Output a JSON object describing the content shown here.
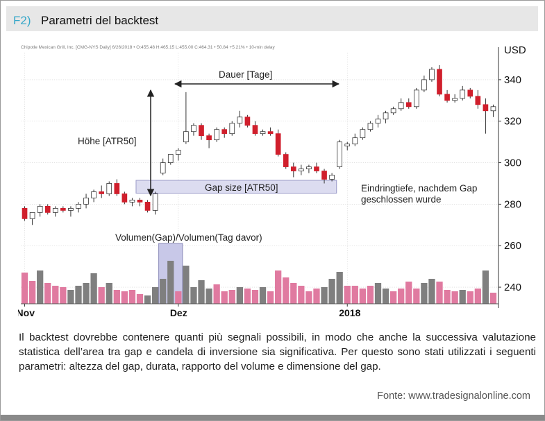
{
  "figure": {
    "label": "F2)",
    "title": "Parametri del backtest",
    "caption": "Il backtest dovrebbe contenere quanti più segnali possibili, in modo che anche la successiva valutazione statistica dell’area tra gap e candela di inversione sia significativa. Per questo sono stati utilizzati i seguenti parametri: altezza del gap, durata, rapporto del volume e dimensione del gap.",
    "source": "Fonte: www.tradesignalonline.com"
  },
  "colors": {
    "up_candle": "#ffffff",
    "down_candle": "#d01f2c",
    "volume_up": "#7f7f7f",
    "volume_down": "#e07aa0",
    "gap_box": "#dcdcf0",
    "volume_box": "#c8c8e8",
    "accent": "#36a7c9"
  },
  "chart_data": {
    "type": "candlestick",
    "header": "Chipotle Mexican Grill, Inc. [CMG-NYS Daily] 6/26/2018 • O:455.48 H:465.15 L:455.00 C:464.31 • 50.84 +5.21% • 10-min delay",
    "ylabel": "USD",
    "ylim": [
      232,
      353
    ],
    "yticks": [
      240,
      260,
      280,
      300,
      320,
      340
    ],
    "x_labels": [
      {
        "label": "Nov",
        "index": 0
      },
      {
        "label": "Dez",
        "index": 20
      },
      {
        "label": "2018",
        "index": 42
      }
    ],
    "candles": [
      [
        278,
        279,
        272,
        273
      ],
      [
        273,
        276,
        270,
        276
      ],
      [
        276,
        280,
        274,
        279
      ],
      [
        279,
        280,
        275,
        276
      ],
      [
        276,
        279,
        274,
        278
      ],
      [
        278,
        279,
        276,
        277
      ],
      [
        277,
        279,
        274,
        278
      ],
      [
        278,
        281,
        276,
        280
      ],
      [
        280,
        285,
        278,
        283
      ],
      [
        283,
        287,
        281,
        286
      ],
      [
        286,
        289,
        283,
        285
      ],
      [
        285,
        291,
        284,
        290
      ],
      [
        290,
        292,
        284,
        285
      ],
      [
        285,
        286,
        280,
        281
      ],
      [
        281,
        283,
        279,
        282
      ],
      [
        282,
        283,
        279,
        281
      ],
      [
        281,
        282,
        276,
        277
      ],
      [
        277,
        286,
        275,
        285
      ],
      [
        295,
        302,
        294,
        300
      ],
      [
        300,
        304,
        299,
        304
      ],
      [
        304,
        307,
        301,
        306
      ],
      [
        310,
        334,
        309,
        315
      ],
      [
        315,
        319,
        313,
        318
      ],
      [
        318,
        319,
        311,
        313
      ],
      [
        313,
        314,
        307,
        311
      ],
      [
        311,
        317,
        310,
        316
      ],
      [
        316,
        317,
        312,
        314
      ],
      [
        314,
        320,
        313,
        319
      ],
      [
        319,
        325,
        317,
        322
      ],
      [
        322,
        323,
        317,
        318
      ],
      [
        318,
        320,
        313,
        314
      ],
      [
        314,
        316,
        313,
        315
      ],
      [
        315,
        317,
        313,
        314
      ],
      [
        314,
        316,
        303,
        304
      ],
      [
        304,
        305,
        297,
        298
      ],
      [
        298,
        300,
        293,
        296
      ],
      [
        296,
        299,
        294,
        297
      ],
      [
        297,
        299,
        295,
        298
      ],
      [
        298,
        300,
        295,
        296
      ],
      [
        296,
        297,
        290,
        292
      ],
      [
        292,
        295,
        291,
        294
      ],
      [
        298,
        311,
        297,
        310
      ],
      [
        308,
        310,
        306,
        309
      ],
      [
        309,
        314,
        308,
        312
      ],
      [
        312,
        317,
        311,
        316
      ],
      [
        316,
        320,
        315,
        319
      ],
      [
        319,
        323,
        317,
        321
      ],
      [
        321,
        325,
        319,
        324
      ],
      [
        324,
        327,
        323,
        326
      ],
      [
        326,
        331,
        325,
        329
      ],
      [
        329,
        331,
        326,
        327
      ],
      [
        327,
        336,
        326,
        335
      ],
      [
        335,
        342,
        334,
        340
      ],
      [
        340,
        346,
        339,
        345
      ],
      [
        345,
        347,
        332,
        333
      ],
      [
        333,
        335,
        329,
        330
      ],
      [
        330,
        333,
        329,
        331
      ],
      [
        331,
        337,
        330,
        335
      ],
      [
        335,
        336,
        331,
        332
      ],
      [
        332,
        335,
        326,
        328
      ],
      [
        328,
        331,
        314,
        325
      ],
      [
        325,
        328,
        322,
        327
      ]
    ],
    "volume": [
      [
        45,
        "down"
      ],
      [
        33,
        "down"
      ],
      [
        48,
        "up"
      ],
      [
        30,
        "down"
      ],
      [
        26,
        "down"
      ],
      [
        24,
        "down"
      ],
      [
        20,
        "up"
      ],
      [
        26,
        "up"
      ],
      [
        30,
        "up"
      ],
      [
        44,
        "up"
      ],
      [
        24,
        "down"
      ],
      [
        30,
        "up"
      ],
      [
        20,
        "down"
      ],
      [
        18,
        "down"
      ],
      [
        20,
        "down"
      ],
      [
        14,
        "down"
      ],
      [
        12,
        "up"
      ],
      [
        24,
        "up"
      ],
      [
        36,
        "up"
      ],
      [
        62,
        "up"
      ],
      [
        18,
        "down"
      ],
      [
        55,
        "up"
      ],
      [
        24,
        "up"
      ],
      [
        34,
        "up"
      ],
      [
        22,
        "up"
      ],
      [
        28,
        "down"
      ],
      [
        18,
        "down"
      ],
      [
        20,
        "down"
      ],
      [
        24,
        "up"
      ],
      [
        22,
        "down"
      ],
      [
        20,
        "down"
      ],
      [
        24,
        "up"
      ],
      [
        18,
        "down"
      ],
      [
        48,
        "down"
      ],
      [
        38,
        "down"
      ],
      [
        30,
        "down"
      ],
      [
        26,
        "down"
      ],
      [
        18,
        "down"
      ],
      [
        22,
        "down"
      ],
      [
        24,
        "up"
      ],
      [
        36,
        "up"
      ],
      [
        46,
        "up"
      ],
      [
        26,
        "down"
      ],
      [
        26,
        "down"
      ],
      [
        22,
        "down"
      ],
      [
        26,
        "down"
      ],
      [
        30,
        "up"
      ],
      [
        22,
        "up"
      ],
      [
        18,
        "down"
      ],
      [
        22,
        "down"
      ],
      [
        32,
        "down"
      ],
      [
        22,
        "down"
      ],
      [
        30,
        "up"
      ],
      [
        36,
        "up"
      ],
      [
        32,
        "down"
      ],
      [
        20,
        "down"
      ],
      [
        18,
        "down"
      ],
      [
        20,
        "up"
      ],
      [
        18,
        "down"
      ],
      [
        22,
        "down"
      ],
      [
        48,
        "up"
      ],
      [
        16,
        "down"
      ]
    ],
    "annotations": {
      "duration": "Dauer [Tage]",
      "height": "Höhe [ATR50]",
      "gap_size": "Gap size [ATR50]",
      "volume_ratio": "Volumen(Gap)/Volumen(Tag davor)",
      "penetration": "Eindringtiefe, nachdem Gap geschlossen wurde"
    }
  }
}
